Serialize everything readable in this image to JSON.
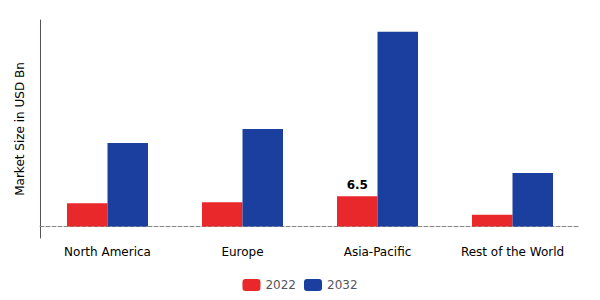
{
  "chart_data": {
    "type": "bar",
    "ylabel": "Market Size in USD Bn",
    "categories": [
      "North America",
      "Europe",
      "Asia-Pacific",
      "Rest of the World"
    ],
    "series": [
      {
        "name": "2022",
        "color": "#e8282a",
        "values": [
          5.0,
          5.2,
          6.5,
          2.5
        ]
      },
      {
        "name": "2032",
        "color": "#1b3f9e",
        "values": [
          18.0,
          21.0,
          42.0,
          11.5
        ]
      }
    ],
    "ylim": [
      -2.5,
      44.52
    ],
    "yticks": [],
    "tick_labels": "x",
    "grid": false,
    "legend": "bottom",
    "annotations": [
      {
        "text": "6.5",
        "category": "Asia-Pacific",
        "series": "2022"
      }
    ]
  }
}
